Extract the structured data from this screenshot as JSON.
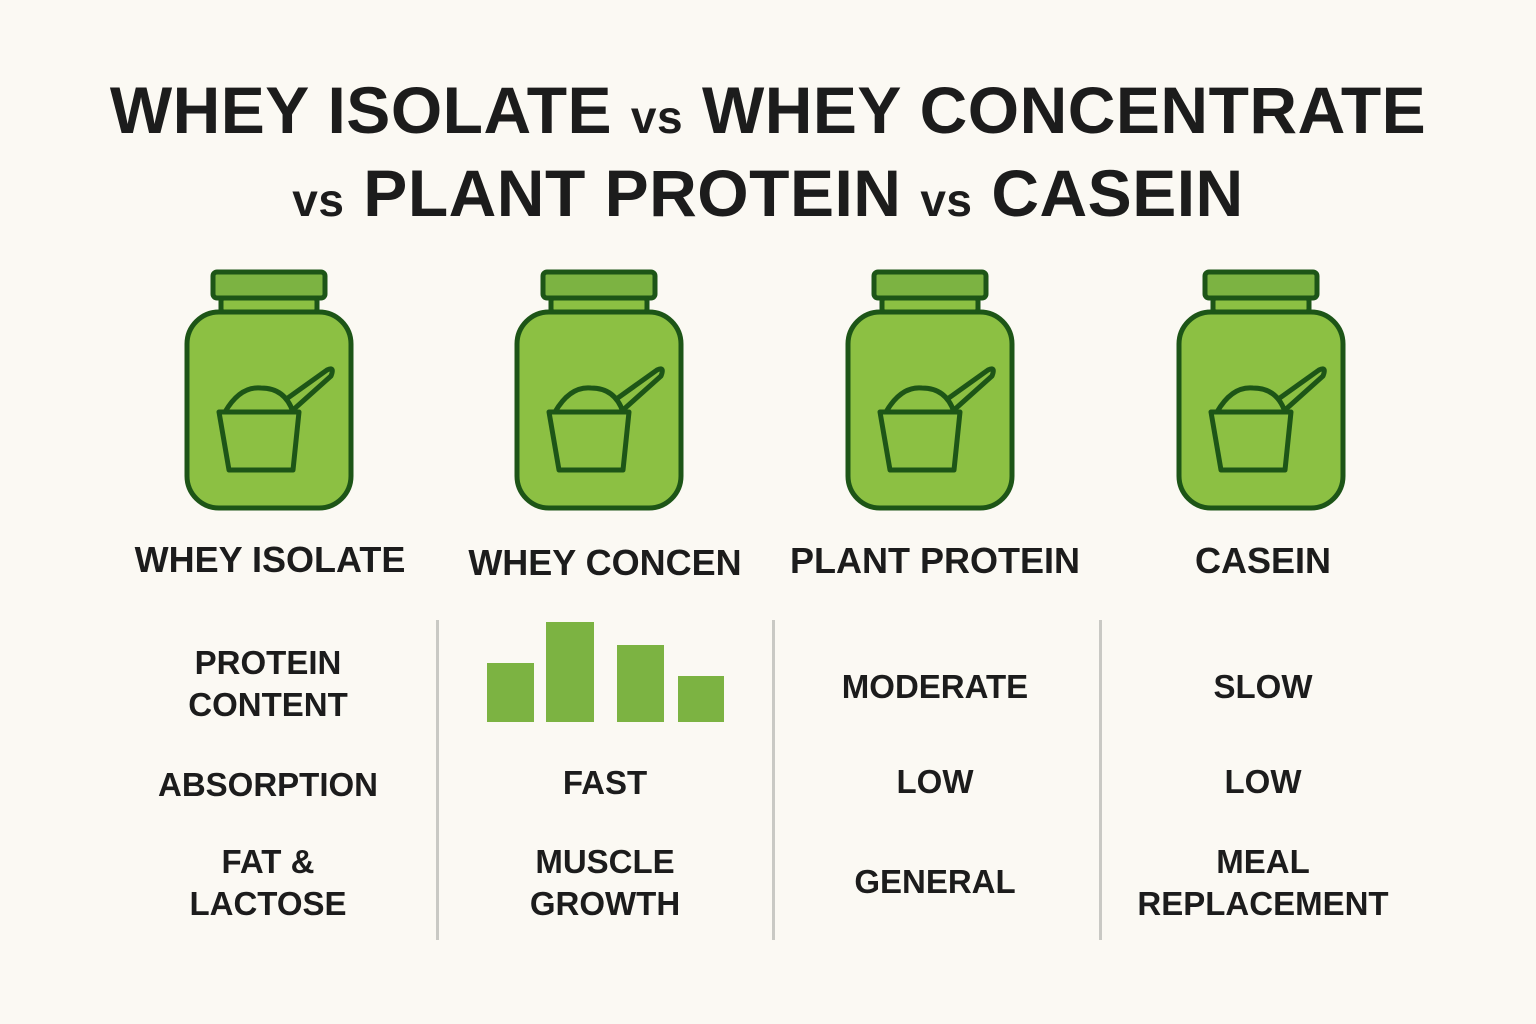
{
  "title": {
    "line1": [
      "WHEY ISOLATE",
      "vs",
      "WHEY CONCENTRATE"
    ],
    "line2": [
      "vs",
      "PLANT PROTEIN",
      "vs",
      "CASEIN"
    ]
  },
  "columns": [
    {
      "product": "WHEY ISOLATE",
      "cells": [
        "PROTEIN\nCONTENT",
        "ABSORPTION",
        "FAT &\nLACTOSE"
      ]
    },
    {
      "product": "WHEY CONCEN",
      "cells": [
        "FAST",
        "MUSCLE\nGROWTH"
      ]
    },
    {
      "product": "PLANT PROTEIN",
      "cells": [
        "MODERATE",
        "LOW",
        "GENERAL"
      ]
    },
    {
      "product": "CASEIN",
      "cells": [
        "SLOW",
        "LOW",
        "MEAL\nREPLACEMENT"
      ]
    }
  ]
}
